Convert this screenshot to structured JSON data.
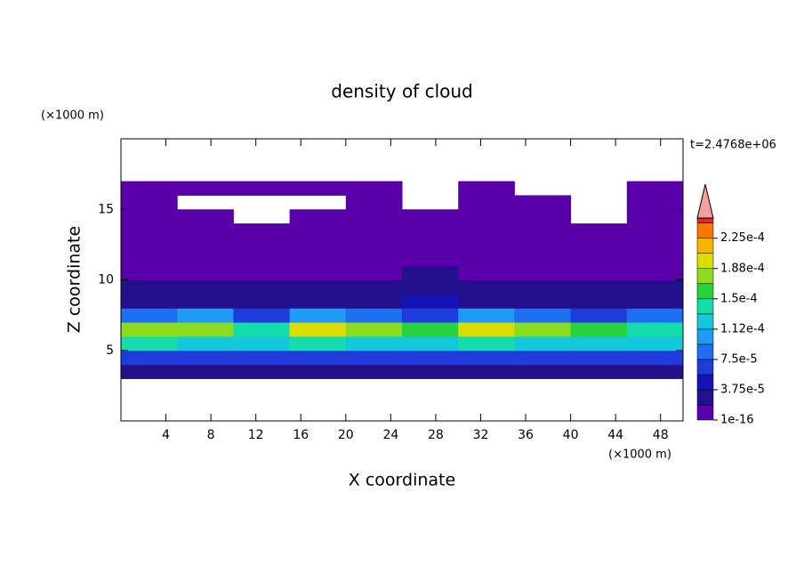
{
  "chart_data": {
    "type": "contour",
    "title": "density of cloud",
    "xlabel": "X coordinate",
    "ylabel": "Z coordinate",
    "xunit": "(×1000 m)",
    "yunit": "(×1000 m)",
    "annotation": "t=2.4768e+06",
    "xlim": [
      0,
      50
    ],
    "ylim": [
      0,
      20
    ],
    "xticks": [
      4,
      8,
      12,
      16,
      20,
      24,
      28,
      32,
      36,
      40,
      44,
      48
    ],
    "yticks": [
      5,
      10,
      15
    ],
    "x": [
      2.5,
      7.5,
      12.5,
      17.5,
      22.5,
      27.5,
      32.5,
      37.5,
      42.5,
      47.5
    ],
    "y": [
      3.5,
      4.5,
      5.5,
      6.5,
      7.5,
      8.5,
      9.5,
      10.5,
      11.5,
      12.5,
      13.5,
      14.5,
      15.5,
      16.5
    ],
    "z": [
      [
        3e-05,
        3e-05,
        3e-05,
        3e-05,
        3e-05,
        3e-05,
        3e-05,
        3e-05,
        3e-05,
        3e-05
      ],
      [
        6e-05,
        6e-05,
        6e-05,
        6e-05,
        6e-05,
        6e-05,
        6e-05,
        6e-05,
        6e-05,
        6e-05
      ],
      [
        0.00014,
        0.00013,
        0.00012,
        0.00014,
        0.00013,
        0.00012,
        0.00014,
        0.00013,
        0.00013,
        0.00012
      ],
      [
        0.00017,
        0.00018,
        0.00014,
        0.00019,
        0.00017,
        0.00015,
        0.0002,
        0.00017,
        0.00016,
        0.00014
      ],
      [
        8e-05,
        0.0001,
        7e-05,
        0.00011,
        9e-05,
        6e-05,
        0.00011,
        8e-05,
        7e-05,
        9e-05
      ],
      [
        2.5e-05,
        3e-05,
        2.5e-05,
        2.5e-05,
        3e-05,
        4e-05,
        3e-05,
        2.5e-05,
        2.5e-05,
        2.5e-05
      ],
      [
        2e-05,
        2e-05,
        2e-05,
        2e-05,
        2.5e-05,
        3e-05,
        2.5e-05,
        2e-05,
        2e-05,
        2e-05
      ],
      [
        1e-05,
        1e-05,
        1e-05,
        1e-05,
        1e-05,
        2e-05,
        1e-05,
        1e-05,
        1e-05,
        1e-05
      ],
      [
        1e-05,
        1e-05,
        1e-05,
        1e-05,
        1e-05,
        1e-05,
        1e-05,
        1e-05,
        1e-05,
        1e-05
      ],
      [
        1e-05,
        1e-05,
        1e-05,
        1e-05,
        1e-05,
        1e-05,
        1e-05,
        1e-05,
        1e-05,
        1e-05
      ],
      [
        1e-05,
        1e-05,
        1e-05,
        1e-05,
        1e-05,
        1e-05,
        1e-05,
        1e-05,
        1e-05,
        1e-05
      ],
      [
        5e-06,
        5e-06,
        null,
        5e-06,
        5e-06,
        5e-06,
        5e-06,
        5e-06,
        null,
        5e-06
      ],
      [
        5e-06,
        null,
        null,
        null,
        5e-06,
        null,
        5e-06,
        5e-06,
        null,
        5e-06
      ],
      [
        5e-06,
        5e-06,
        5e-06,
        5e-06,
        5e-06,
        null,
        5e-06,
        null,
        null,
        5e-06
      ]
    ],
    "colorbar": {
      "clim": [
        1e-16,
        0.00025
      ],
      "levels": [
        1e-16,
        1.875e-05,
        3.75e-05,
        5.625e-05,
        7.5e-05,
        9.375e-05,
        0.0001125,
        0.00013125,
        0.00015,
        0.00016875,
        0.0001875,
        0.00020625,
        0.000225,
        0.00024375
      ],
      "colors": [
        "#5a00aa",
        "#24108c",
        "#1414b4",
        "#1e3cdc",
        "#1e6ef0",
        "#1e9bf5",
        "#14c8dc",
        "#14dcaa",
        "#28d23c",
        "#8cdc1e",
        "#dcdc00",
        "#f5b400",
        "#f57800",
        "#e62814"
      ],
      "extend_color": "#f5a0a0",
      "ticks": [
        {
          "value": 1e-16,
          "label": "1e-16"
        },
        {
          "value": 3.75e-05,
          "label": "3.75e-5"
        },
        {
          "value": 7.5e-05,
          "label": "7.5e-5"
        },
        {
          "value": 0.0001125,
          "label": "1.12e-4"
        },
        {
          "value": 0.00015,
          "label": "1.5e-4"
        },
        {
          "value": 0.0001875,
          "label": "1.88e-4"
        },
        {
          "value": 0.000225,
          "label": "2.25e-4"
        }
      ]
    }
  }
}
